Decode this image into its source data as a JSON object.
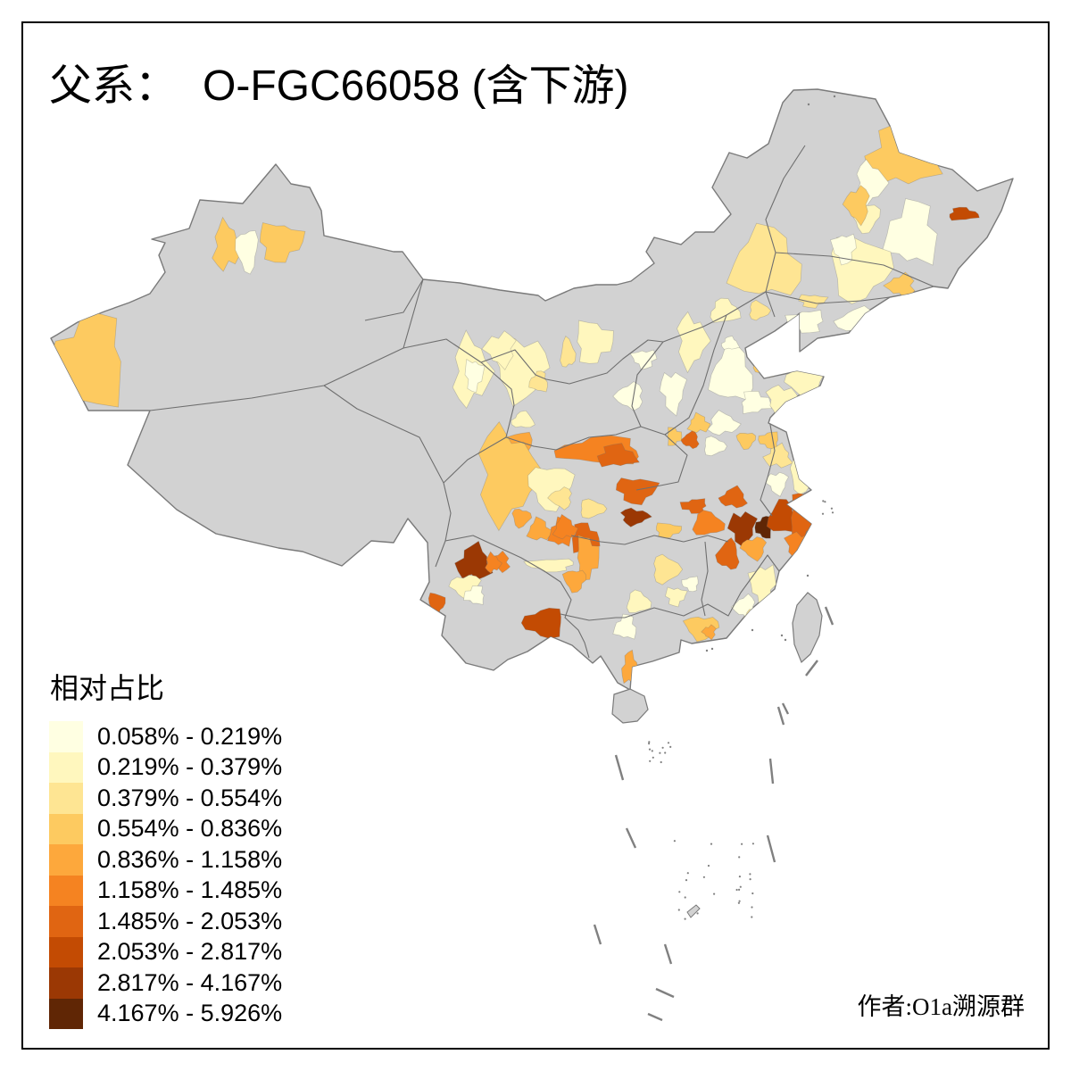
{
  "title": {
    "prefix": "父系：",
    "main": "O-FGC66058 (含下游)"
  },
  "legend": {
    "title": "相对占比",
    "items": [
      {
        "label": "0.058% - 0.219%",
        "color": "#FFFFE2"
      },
      {
        "label": "0.219% - 0.379%",
        "color": "#FFF7BE"
      },
      {
        "label": "0.379% - 0.554%",
        "color": "#FEE593"
      },
      {
        "label": "0.554% - 0.836%",
        "color": "#FDCA60"
      },
      {
        "label": "0.836% - 1.158%",
        "color": "#FDA83C"
      },
      {
        "label": "1.158% - 1.485%",
        "color": "#F58321"
      },
      {
        "label": "1.485% - 2.053%",
        "color": "#E06512"
      },
      {
        "label": "2.053% - 2.817%",
        "color": "#C34B03"
      },
      {
        "label": "2.817% - 4.167%",
        "color": "#9B3804"
      },
      {
        "label": "4.167% - 5.926%",
        "color": "#602605"
      }
    ]
  },
  "credit": "作者:O1a溯源群",
  "map": {
    "nodata_color": "#D2D2D2",
    "boundary_color": "#7A7A7A",
    "province_line_color": "#6F6F6F",
    "region_edge_color": "rgba(110,110,110,0.35)",
    "sea_mark_color": "#808080",
    "frame_color": "#000000",
    "background": "#FFFFFF"
  }
}
